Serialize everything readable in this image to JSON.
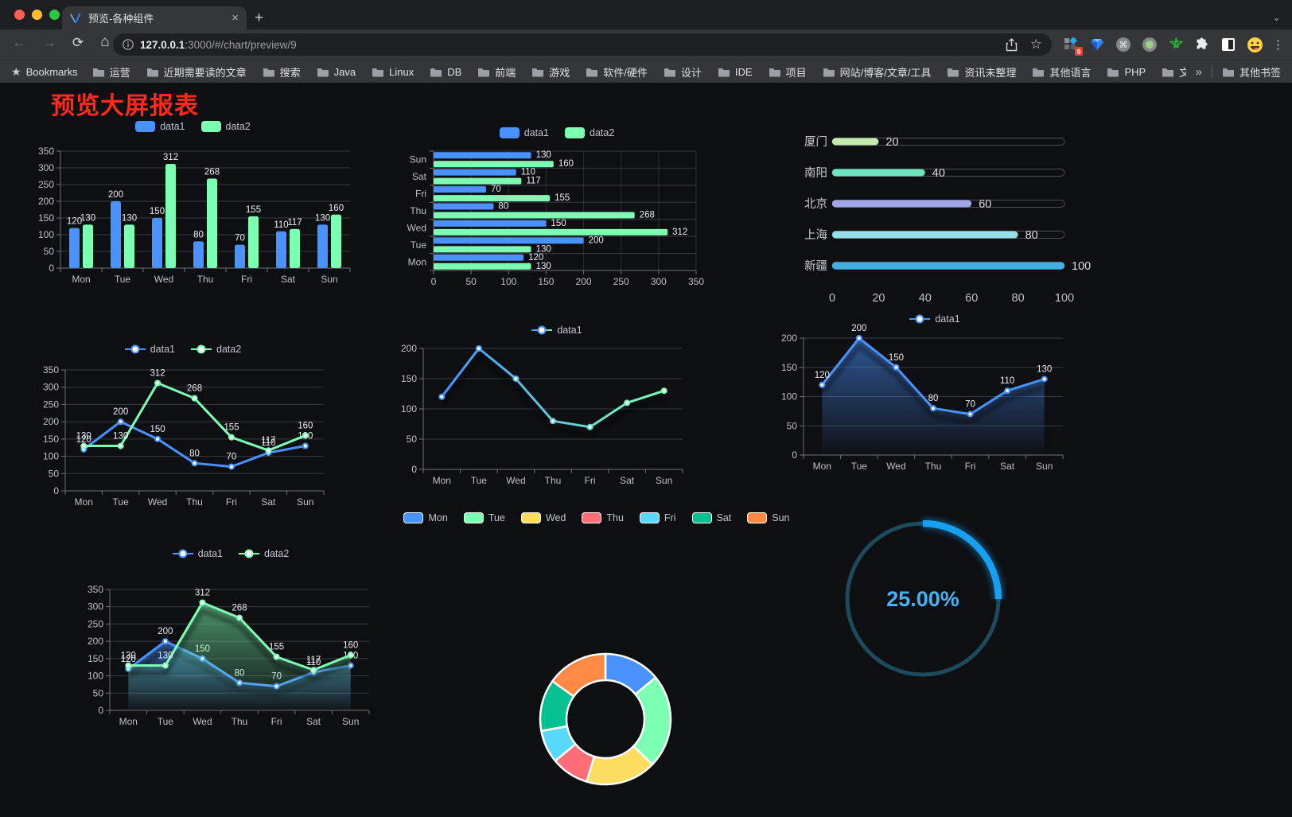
{
  "browser": {
    "tab": {
      "title": "预览-各种组件"
    },
    "new_tab_glyph": "+",
    "close_glyph": "×",
    "chevron_glyph": "⌄",
    "nav": {
      "back": "←",
      "forward": "→",
      "reload": "⟳",
      "home": "⌂"
    },
    "url": {
      "host": "127.0.0.1",
      "rest": ":3000/#/chart/preview/9"
    },
    "star_glyph": "☆",
    "menu_glyph": "⋮",
    "extension_badge": "9",
    "bookmarks_star": "★",
    "bookmarks_label": "Bookmarks",
    "bookmarks": [
      "运营",
      "近期需要读的文章",
      "搜索",
      "Java",
      "Linux",
      "DB",
      "前端",
      "游戏",
      "软件/硬件",
      "设计",
      "IDE",
      "项目",
      "网站/博客/文章/工具",
      "资讯未整理",
      "其他语言",
      "PHP",
      "文件服务器"
    ],
    "bookmarks_overflow": "»",
    "other_bookmarks": "其他书签"
  },
  "page": {
    "title": "预览大屏报表",
    "title_color": "#fe2b1c"
  },
  "chart_data": [
    {
      "id": "bar-vertical",
      "type": "bar",
      "categories": [
        "Mon",
        "Tue",
        "Wed",
        "Thu",
        "Fri",
        "Sat",
        "Sun"
      ],
      "series": [
        {
          "name": "data1",
          "color": "#4992ff",
          "values": [
            120,
            200,
            150,
            80,
            70,
            110,
            130
          ]
        },
        {
          "name": "data2",
          "color": "#7cffb2",
          "values": [
            130,
            130,
            312,
            268,
            155,
            117,
            160
          ]
        }
      ],
      "ylim": [
        0,
        350
      ],
      "ytick": 50,
      "labels": true,
      "grid": true,
      "legend_position": "top"
    },
    {
      "id": "bar-horizontal",
      "type": "bar-h",
      "categories": [
        "Mon",
        "Tue",
        "Wed",
        "Thu",
        "Fri",
        "Sat",
        "Sun"
      ],
      "category_display": "reversed-top-to-bottom",
      "series": [
        {
          "name": "data1",
          "color": "#4992ff",
          "values": [
            120,
            200,
            150,
            80,
            70,
            110,
            130
          ]
        },
        {
          "name": "data2",
          "color": "#7cffb2",
          "values": [
            130,
            130,
            312,
            268,
            155,
            117,
            160
          ]
        }
      ],
      "xlim": [
        0,
        350
      ],
      "xtick": 50,
      "labels": true,
      "grid": true,
      "legend_position": "top"
    },
    {
      "id": "progress",
      "type": "progress",
      "items": [
        {
          "label": "厦门",
          "value": 20,
          "color": "#c4ebad"
        },
        {
          "label": "南阳",
          "value": 40,
          "color": "#6be6c1"
        },
        {
          "label": "北京",
          "value": 60,
          "color": "#a0a7e6"
        },
        {
          "label": "上海",
          "value": 80,
          "color": "#96dee8"
        },
        {
          "label": "新疆",
          "value": 100,
          "color": "#3fb1e3"
        }
      ],
      "xlim": [
        0,
        100
      ],
      "xticks": [
        0,
        20,
        40,
        60,
        80,
        100
      ]
    },
    {
      "id": "line-basic",
      "type": "line",
      "categories": [
        "Mon",
        "Tue",
        "Wed",
        "Thu",
        "Fri",
        "Sat",
        "Sun"
      ],
      "series": [
        {
          "name": "data1",
          "color": "#4992ff",
          "values": [
            120,
            200,
            150,
            80,
            70,
            110,
            130
          ]
        },
        {
          "name": "data2",
          "color": "#7cffb2",
          "values": [
            130,
            130,
            312,
            268,
            155,
            117,
            160
          ]
        }
      ],
      "ylim": [
        0,
        350
      ],
      "ytick": 50,
      "labels": true,
      "legend_position": "top"
    },
    {
      "id": "line-gradient",
      "type": "line",
      "categories": [
        "Mon",
        "Tue",
        "Wed",
        "Thu",
        "Fri",
        "Sat",
        "Sun"
      ],
      "series": [
        {
          "name": "data1",
          "color_gradient": [
            "#4992ff",
            "#7cffb2"
          ],
          "values": [
            120,
            200,
            150,
            80,
            70,
            110,
            130
          ]
        }
      ],
      "ylim": [
        0,
        200
      ],
      "ytick": 50,
      "labels": false,
      "shadow": true,
      "legend_position": "top"
    },
    {
      "id": "line-area",
      "type": "line",
      "categories": [
        "Mon",
        "Tue",
        "Wed",
        "Thu",
        "Fri",
        "Sat",
        "Sun"
      ],
      "series": [
        {
          "name": "data1",
          "color": "#4992ff",
          "area": true,
          "values": [
            120,
            200,
            150,
            80,
            70,
            110,
            130
          ]
        }
      ],
      "ylim": [
        0,
        200
      ],
      "ytick": 50,
      "labels": true,
      "shadow": true,
      "legend_position": "top"
    },
    {
      "id": "line-area-double",
      "type": "line",
      "categories": [
        "Mon",
        "Tue",
        "Wed",
        "Thu",
        "Fri",
        "Sat",
        "Sun"
      ],
      "series": [
        {
          "name": "data1",
          "color": "#4992ff",
          "area": true,
          "values": [
            120,
            200,
            150,
            80,
            70,
            110,
            130
          ]
        },
        {
          "name": "data2",
          "color": "#7cffb2",
          "area": true,
          "values": [
            130,
            130,
            312,
            268,
            155,
            117,
            160
          ]
        }
      ],
      "ylim": [
        0,
        350
      ],
      "ytick": 50,
      "labels": true,
      "shadow": true,
      "legend_position": "top"
    },
    {
      "id": "donut",
      "type": "pie",
      "items": [
        {
          "label": "Mon",
          "value": 120,
          "color": "#4992ff"
        },
        {
          "label": "Tue",
          "value": 200,
          "color": "#7cffb2"
        },
        {
          "label": "Wed",
          "value": 150,
          "color": "#fddd60"
        },
        {
          "label": "Thu",
          "value": 80,
          "color": "#ff6e76"
        },
        {
          "label": "Fri",
          "value": 70,
          "color": "#58d9f9"
        },
        {
          "label": "Sat",
          "value": 110,
          "color": "#05c091"
        },
        {
          "label": "Sun",
          "value": 130,
          "color": "#ff8a45"
        }
      ],
      "donut": true,
      "border_color": "#ffffff",
      "legend_position": "top"
    },
    {
      "id": "gauge",
      "type": "gauge",
      "value": 25,
      "max": 100,
      "display": "25.00%",
      "arc_color": "#18a0f0",
      "track_color": "#1d4b5c",
      "text_color": "#47b2f2"
    }
  ]
}
